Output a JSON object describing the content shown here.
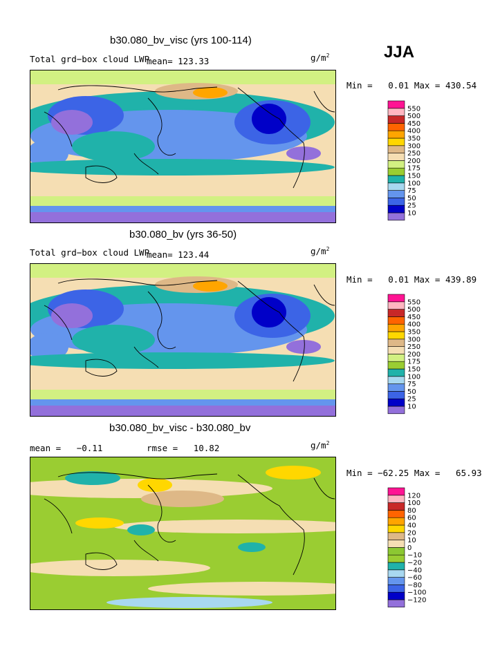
{
  "header": {
    "season": "JJA"
  },
  "panels": [
    {
      "title": "b30.080_bv_visc (yrs 100-114)",
      "left_label": "Total grd−box cloud LWP",
      "mean_label": "mean= 123.33",
      "units": "g/m",
      "units_exp": "2",
      "stats": "Min =   0.01 Max = 430.54"
    },
    {
      "title": "b30.080_bv (yrs 36-50)",
      "left_label": "Total grd−box cloud LWP",
      "mean_label": "mean= 123.44",
      "units": "g/m",
      "units_exp": "2",
      "stats": "Min =   0.01 Max = 439.89"
    },
    {
      "title": "b30.080_bv_visc - b30.080_bv",
      "mean_label": "mean =   −0.11",
      "rmse_label": "rmse =   10.82",
      "units": "g/m",
      "units_exp": "2",
      "stats": "Min = −62.25 Max =   65.93"
    }
  ],
  "chart_data": [
    {
      "type": "heatmap",
      "title": "b30.080_bv_visc (yrs 100-114)",
      "variable": "Total grd−box cloud LWP",
      "units": "g/m2",
      "mean": 123.33,
      "min": 0.01,
      "max": 430.54,
      "levels": [
        10,
        25,
        50,
        75,
        100,
        150,
        175,
        200,
        250,
        300,
        350,
        400,
        450,
        500,
        550
      ],
      "level_labels": [
        "10",
        "25",
        "50",
        "75",
        "100",
        "150",
        "175",
        "200",
        "250",
        "300",
        "350",
        "400",
        "450",
        "500",
        "550"
      ],
      "colors": [
        "#9370db",
        "#0000c8",
        "#3c64e6",
        "#6495ed",
        "#a8d8f0",
        "#20b2aa",
        "#9acd32",
        "#d2f082",
        "#f5deb3",
        "#deb887",
        "#ffd700",
        "#ffa500",
        "#ff6400",
        "#c82828",
        "#ffb6c1",
        "#ff1493"
      ]
    },
    {
      "type": "heatmap",
      "title": "b30.080_bv (yrs 36-50)",
      "variable": "Total grd−box cloud LWP",
      "units": "g/m2",
      "mean": 123.44,
      "min": 0.01,
      "max": 439.89,
      "levels": [
        10,
        25,
        50,
        75,
        100,
        150,
        175,
        200,
        250,
        300,
        350,
        400,
        450,
        500,
        550
      ],
      "level_labels": [
        "10",
        "25",
        "50",
        "75",
        "100",
        "150",
        "175",
        "200",
        "250",
        "300",
        "350",
        "400",
        "450",
        "500",
        "550"
      ],
      "colors": [
        "#9370db",
        "#0000c8",
        "#3c64e6",
        "#6495ed",
        "#a8d8f0",
        "#20b2aa",
        "#9acd32",
        "#d2f082",
        "#f5deb3",
        "#deb887",
        "#ffd700",
        "#ffa500",
        "#ff6400",
        "#c82828",
        "#ffb6c1",
        "#ff1493"
      ]
    },
    {
      "type": "heatmap",
      "title": "b30.080_bv_visc - b30.080_bv",
      "units": "g/m2",
      "mean": -0.11,
      "rmse": 10.82,
      "min": -62.25,
      "max": 65.93,
      "levels": [
        -120,
        -100,
        -80,
        -60,
        -40,
        -20,
        -10,
        0,
        10,
        20,
        40,
        60,
        80,
        100,
        120
      ],
      "level_labels": [
        "−120",
        "−100",
        "−80",
        "−60",
        "−40",
        "−20",
        "−10",
        "0",
        "10",
        "20",
        "40",
        "60",
        "80",
        "100",
        "120"
      ],
      "colors": [
        "#9370db",
        "#0000c8",
        "#3c64e6",
        "#6495ed",
        "#a8d8f0",
        "#20b2aa",
        "#9acd32",
        "#8cc832",
        "#f5deb3",
        "#deb887",
        "#ffd700",
        "#ffa500",
        "#ff6400",
        "#c82828",
        "#ffb6c1",
        "#ff1493"
      ]
    }
  ]
}
